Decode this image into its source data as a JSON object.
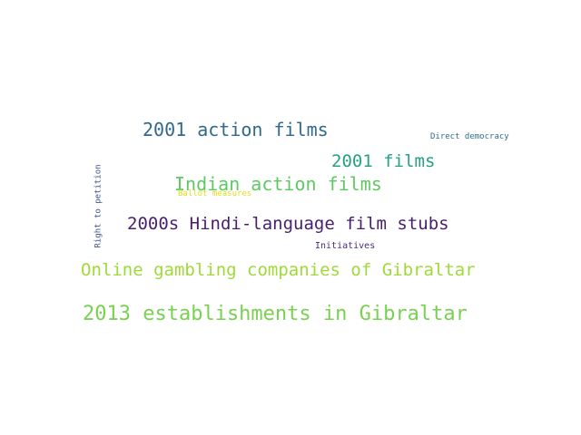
{
  "word_cloud": {
    "background_color": "#ffffff",
    "words": [
      {
        "id": "w-2001-action-films",
        "name": "word-2001-action-films",
        "text": "2001 action films",
        "color": "#31688e"
      },
      {
        "id": "w-direct-democracy",
        "name": "word-direct-democracy",
        "text": "Direct democracy",
        "color": "#2c6e8e"
      },
      {
        "id": "w-2001-films",
        "name": "word-2001-films",
        "text": "2001 films",
        "color": "#26a184"
      },
      {
        "id": "w-indian-action",
        "name": "word-indian-action-films",
        "text": "Indian action films",
        "color": "#5ec962"
      },
      {
        "id": "w-ballot-measures",
        "name": "word-ballot-measures",
        "text": "Ballot measures",
        "color": "#dde318"
      },
      {
        "id": "w-hindi-stubs",
        "name": "word-2000s-hindi-language-film-stubs",
        "text": "2000s Hindi-language film stubs",
        "color": "#481f70"
      },
      {
        "id": "w-initiatives",
        "name": "word-initiatives",
        "text": "Initiatives",
        "color": "#472d7b"
      },
      {
        "id": "w-gambling",
        "name": "word-online-gambling-companies-of-gibraltar",
        "text": "Online gambling companies of Gibraltar",
        "color": "#a0da39"
      },
      {
        "id": "w-gibraltar-2013",
        "name": "word-2013-establishments-in-gibraltar",
        "text": "2013 establishments in Gibraltar",
        "color": "#7ad151"
      },
      {
        "id": "w-right-to-petition",
        "name": "word-right-to-petition",
        "text": "Right to petition",
        "color": "#3b528b"
      }
    ]
  }
}
